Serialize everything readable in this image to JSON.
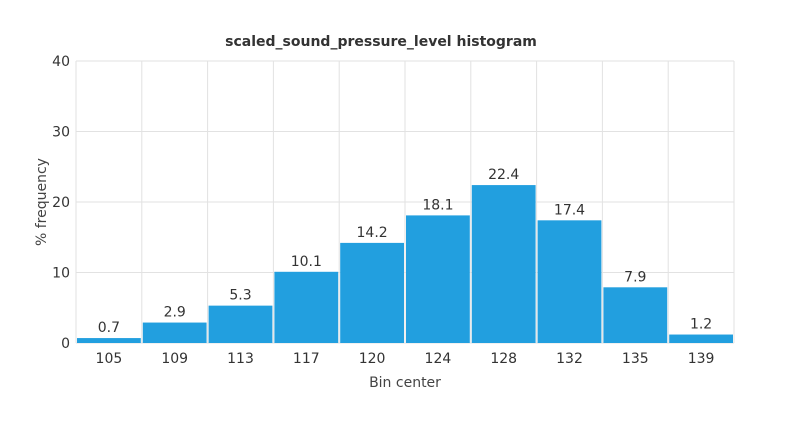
{
  "chart_data": {
    "type": "bar",
    "title": "scaled_sound_pressure_level histogram",
    "xlabel": "Bin center",
    "ylabel": "% frequency",
    "categories": [
      "105",
      "109",
      "113",
      "117",
      "120",
      "124",
      "128",
      "132",
      "135",
      "139"
    ],
    "values": [
      0.7,
      2.9,
      5.3,
      10.1,
      14.2,
      18.1,
      22.4,
      17.4,
      7.9,
      1.2
    ],
    "data_labels": [
      "0.7",
      "2.9",
      "5.3",
      "10.1",
      "14.2",
      "18.1",
      "22.4",
      "17.4",
      "7.9",
      "1.2"
    ],
    "ylim": [
      0,
      40
    ],
    "yticks": [
      "0",
      "10",
      "20",
      "30",
      "40"
    ],
    "grid": true,
    "bar_color": "#229fdf",
    "grid_color": "#e2e2e2"
  }
}
